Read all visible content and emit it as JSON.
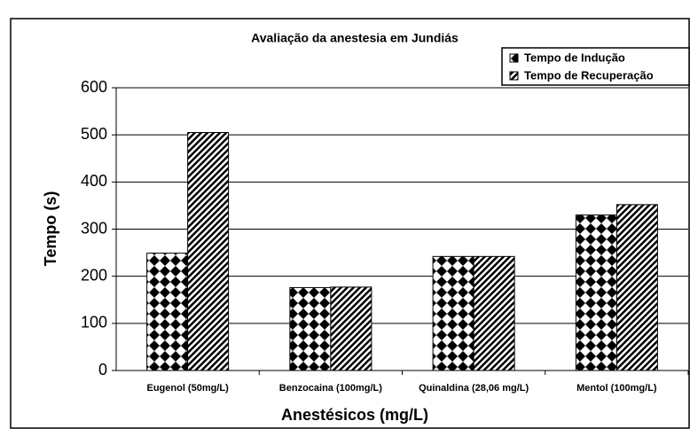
{
  "chart_data": {
    "type": "bar",
    "title": "Avaliação da anestesia em Jundiás",
    "x_label": "Anestésicos (mg/L)",
    "y_label": "Tempo (s)",
    "categories": [
      "Eugenol (50mg/L)",
      "Benzocaina (100mg/L)",
      "Quinaldina (28,06 mg/L)",
      "Mentol (100mg/L)"
    ],
    "series": [
      {
        "name": "Tempo de Indução",
        "color": "#000000",
        "pattern": "diamond",
        "values": [
          249,
          176,
          242,
          330
        ]
      },
      {
        "name": "Tempo de Recuperação",
        "color": "#000000",
        "pattern": "hatch",
        "values": [
          505,
          177,
          242,
          352
        ]
      }
    ],
    "ylim": [
      0,
      600
    ],
    "yticks": [
      0,
      100,
      200,
      300,
      400,
      500,
      600
    ],
    "grid": true,
    "legend": "top-right"
  }
}
